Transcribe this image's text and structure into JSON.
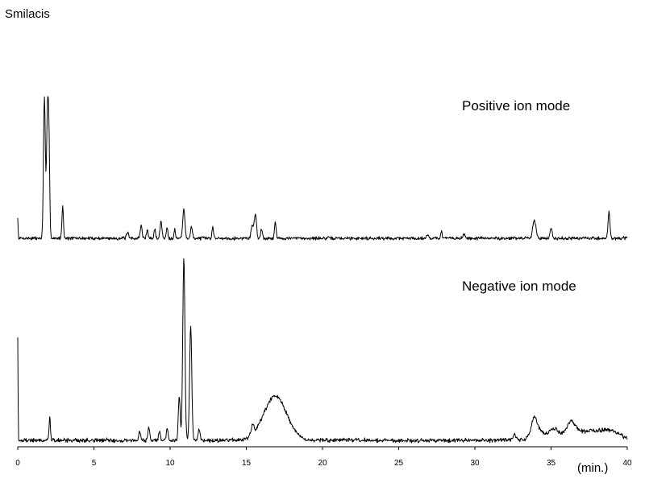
{
  "chart_data": {
    "type": "line",
    "title": "Smilacis",
    "xlabel": "(min.)",
    "ylabel": "",
    "xlim": [
      0,
      40
    ],
    "xticks": [
      0,
      5,
      10,
      15,
      20,
      25,
      30,
      35,
      40
    ],
    "tick_labels": [
      "0",
      "5",
      "10",
      "15",
      "20",
      "25",
      "30",
      "35",
      "40"
    ],
    "grid": false,
    "legend": "none",
    "y_axis_labels_shown": false,
    "series": [
      {
        "name": "Positive ion mode",
        "baseline": 0,
        "peaks": [
          {
            "t": 0.0,
            "h": 0.14,
            "w": 0.02
          },
          {
            "t": 1.75,
            "h": 0.98,
            "w": 0.06
          },
          {
            "t": 1.95,
            "h": 0.85,
            "w": 0.06
          },
          {
            "t": 2.05,
            "h": 0.6,
            "w": 0.05
          },
          {
            "t": 2.95,
            "h": 0.22,
            "w": 0.05
          },
          {
            "t": 7.2,
            "h": 0.04,
            "w": 0.06
          },
          {
            "t": 8.1,
            "h": 0.09,
            "w": 0.06
          },
          {
            "t": 8.5,
            "h": 0.06,
            "w": 0.05
          },
          {
            "t": 9.0,
            "h": 0.06,
            "w": 0.05
          },
          {
            "t": 9.4,
            "h": 0.12,
            "w": 0.06
          },
          {
            "t": 9.8,
            "h": 0.08,
            "w": 0.05
          },
          {
            "t": 10.3,
            "h": 0.06,
            "w": 0.05
          },
          {
            "t": 10.9,
            "h": 0.2,
            "w": 0.07
          },
          {
            "t": 11.4,
            "h": 0.08,
            "w": 0.06
          },
          {
            "t": 12.8,
            "h": 0.08,
            "w": 0.05
          },
          {
            "t": 15.4,
            "h": 0.09,
            "w": 0.08
          },
          {
            "t": 15.6,
            "h": 0.16,
            "w": 0.07
          },
          {
            "t": 16.0,
            "h": 0.06,
            "w": 0.06
          },
          {
            "t": 16.9,
            "h": 0.12,
            "w": 0.05
          },
          {
            "t": 26.9,
            "h": 0.03,
            "w": 0.06
          },
          {
            "t": 27.8,
            "h": 0.05,
            "w": 0.05
          },
          {
            "t": 29.3,
            "h": 0.03,
            "w": 0.06
          },
          {
            "t": 33.9,
            "h": 0.13,
            "w": 0.1
          },
          {
            "t": 35.0,
            "h": 0.07,
            "w": 0.07
          },
          {
            "t": 38.8,
            "h": 0.18,
            "w": 0.06
          }
        ]
      },
      {
        "name": "Negative ion mode",
        "baseline": 0,
        "peaks": [
          {
            "t": 0.0,
            "h": 0.57,
            "w": 0.02
          },
          {
            "t": 2.1,
            "h": 0.14,
            "w": 0.04
          },
          {
            "t": 8.0,
            "h": 0.05,
            "w": 0.06
          },
          {
            "t": 8.6,
            "h": 0.07,
            "w": 0.06
          },
          {
            "t": 9.3,
            "h": 0.05,
            "w": 0.06
          },
          {
            "t": 9.8,
            "h": 0.06,
            "w": 0.06
          },
          {
            "t": 10.6,
            "h": 0.25,
            "w": 0.06
          },
          {
            "t": 10.9,
            "h": 1.0,
            "w": 0.07
          },
          {
            "t": 11.35,
            "h": 0.62,
            "w": 0.07
          },
          {
            "t": 11.9,
            "h": 0.06,
            "w": 0.06
          },
          {
            "t": 15.4,
            "h": 0.05,
            "w": 0.1
          },
          {
            "t": 16.9,
            "h": 0.24,
            "w": 0.75
          },
          {
            "t": 32.6,
            "h": 0.03,
            "w": 0.1
          },
          {
            "t": 33.9,
            "h": 0.09,
            "w": 0.2
          },
          {
            "t": 34.2,
            "h": 0.04,
            "w": 0.5
          },
          {
            "t": 35.2,
            "h": 0.05,
            "w": 0.3
          },
          {
            "t": 36.3,
            "h": 0.07,
            "w": 0.3
          },
          {
            "t": 37.5,
            "h": 0.05,
            "w": 1.2
          },
          {
            "t": 39.0,
            "h": 0.03,
            "w": 0.6
          }
        ]
      }
    ]
  }
}
